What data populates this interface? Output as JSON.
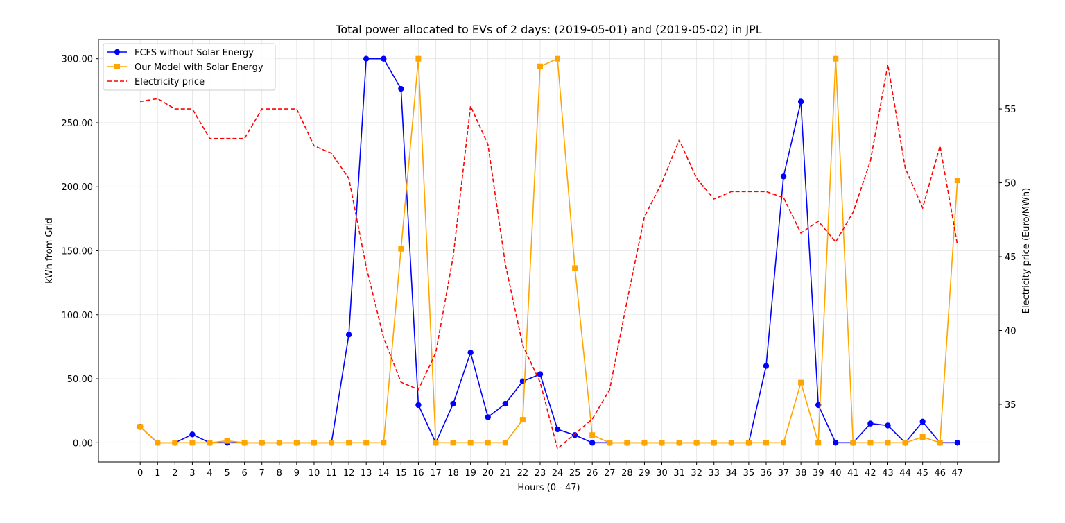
{
  "chart_data": {
    "type": "line",
    "title": "Total power allocated to EVs of 2 days: (2019-05-01) and (2019-05-02) in JPL",
    "xlabel": "Hours (0 - 47)",
    "ylabel": "kWh from Grid",
    "y2label": "Electricity price (Euro/MWh)",
    "x": [
      0,
      1,
      2,
      3,
      4,
      5,
      6,
      7,
      8,
      9,
      10,
      11,
      12,
      13,
      14,
      15,
      16,
      17,
      18,
      19,
      20,
      21,
      22,
      23,
      24,
      25,
      26,
      27,
      28,
      29,
      30,
      31,
      32,
      33,
      34,
      35,
      36,
      37,
      38,
      39,
      40,
      41,
      42,
      43,
      44,
      45,
      46,
      47
    ],
    "xlim": [
      -2.4,
      49.4
    ],
    "ylim": [
      -15,
      315
    ],
    "y2lim": [
      31.1,
      59.7
    ],
    "yticks": [
      0,
      50,
      100,
      150,
      200,
      250,
      300
    ],
    "ytick_labels": [
      "0.00",
      "50.00",
      "100.00",
      "150.00",
      "200.00",
      "250.00",
      "300.00"
    ],
    "y2ticks": [
      35,
      40,
      45,
      50,
      55
    ],
    "y2tick_labels": [
      "35",
      "40",
      "45",
      "50",
      "55"
    ],
    "grid": true,
    "legend_position": "top-left",
    "series": [
      {
        "name": "FCFS without Solar Energy",
        "axis": "left",
        "color": "#0000ff",
        "marker": "circle",
        "line": "solid",
        "values": [
          12.5,
          0,
          0,
          6.5,
          0,
          0,
          0,
          0,
          0,
          0,
          0,
          0,
          84.5,
          300,
          300,
          276.5,
          29.5,
          0,
          30.5,
          70.5,
          20,
          30.5,
          48,
          53.5,
          10.5,
          6,
          0,
          0,
          0,
          0,
          0,
          0,
          0,
          0,
          0,
          0,
          60,
          208,
          266.5,
          29.5,
          0,
          0,
          15,
          13.5,
          0,
          16.5,
          0,
          0
        ]
      },
      {
        "name": "Our Model with Solar Energy",
        "axis": "left",
        "color": "#ffa500",
        "marker": "square",
        "line": "solid",
        "values": [
          12.5,
          0,
          0,
          0,
          0,
          1.5,
          0,
          0,
          0,
          0,
          0,
          0,
          0,
          0,
          0,
          151.5,
          300,
          0,
          0,
          0,
          0,
          0,
          18,
          294,
          300,
          136.5,
          6,
          0,
          0,
          0,
          0,
          0,
          0,
          0,
          0,
          0,
          0,
          0,
          47,
          0,
          300,
          0,
          0,
          0,
          0,
          4.5,
          0,
          205
        ]
      },
      {
        "name": "Electricity price",
        "axis": "right",
        "color": "#ff0000",
        "marker": "none",
        "line": "dashed",
        "values": [
          55.5,
          55.7,
          55,
          55,
          53,
          53,
          53,
          55,
          55,
          55,
          52.5,
          52,
          50.3,
          44.3,
          39.5,
          36.5,
          36,
          38.5,
          45,
          55.2,
          52.6,
          44.5,
          39,
          36.5,
          32,
          33,
          34,
          36,
          42,
          47.7,
          50,
          52.9,
          50.3,
          48.9,
          49.4,
          49.4,
          49.4,
          49,
          46.6,
          47.4,
          46,
          48,
          51.5,
          58,
          51,
          48.3,
          52.5,
          45.8
        ]
      }
    ]
  }
}
